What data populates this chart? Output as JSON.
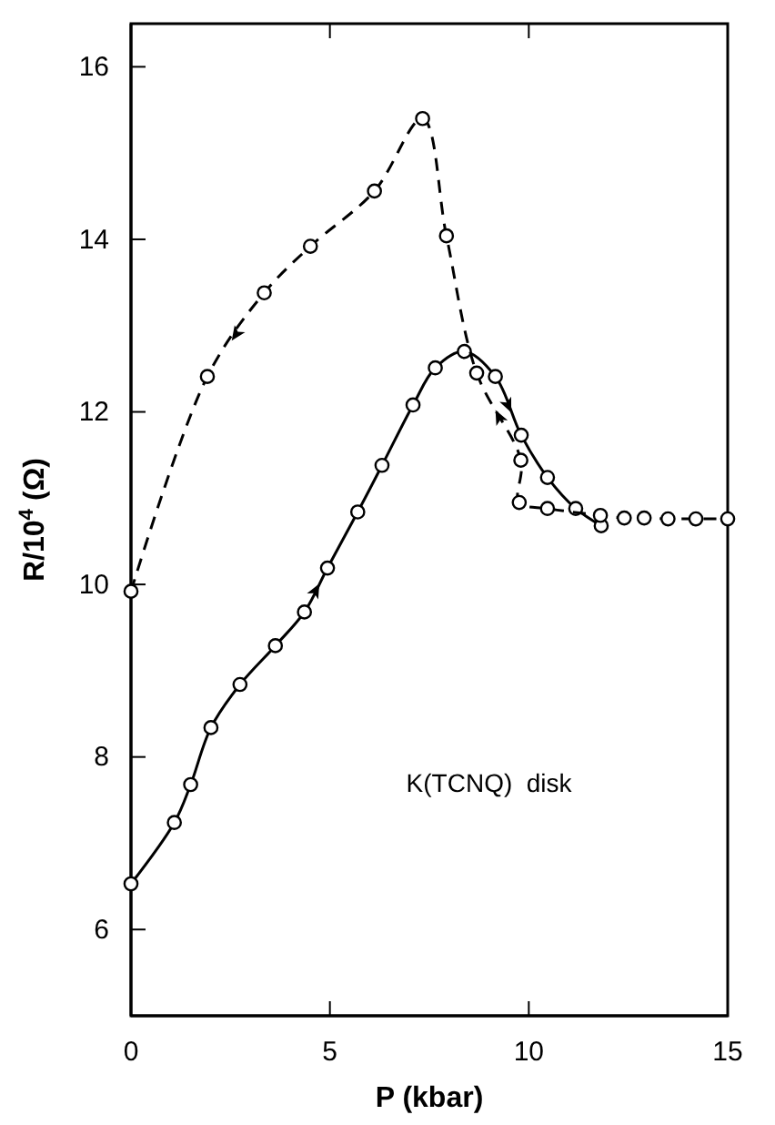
{
  "chart_data": {
    "type": "line",
    "xlabel": "P (kbar)",
    "ylabel": "R/10$^{4}$ (Ω)",
    "xlim": [
      0,
      15
    ],
    "ylim": [
      5,
      16.5
    ],
    "xticks": [
      0,
      5,
      10,
      15
    ],
    "yticks": [
      6,
      8,
      10,
      12,
      14,
      16
    ],
    "marker": "circle",
    "annotations": [
      "K(TCNQ)  disk"
    ],
    "series": [
      {
        "color": "#000000",
        "line_style": "solid",
        "x": [
          0,
          1.09,
          1.5,
          2.01,
          2.74,
          3.63,
          4.36,
          4.94,
          5.7,
          6.31,
          7.09,
          7.65,
          8.38,
          9.16,
          9.81,
          10.47,
          11.18,
          11.82
        ],
        "values": [
          6.53,
          7.24,
          7.68,
          8.34,
          8.84,
          9.29,
          9.68,
          10.19,
          10.84,
          11.38,
          12.08,
          12.51,
          12.7,
          12.41,
          11.73,
          11.24,
          10.88,
          10.68
        ]
      },
      {
        "color": "#000000",
        "line_style": "dashed",
        "x": [
          0,
          1.92,
          3.35,
          4.51,
          6.12,
          7.33,
          7.93,
          8.69,
          9.8,
          9.76,
          10.47,
          11.18,
          11.8,
          12.4,
          12.9,
          13.5,
          14.2,
          15
        ],
        "values": [
          9.92,
          12.41,
          13.38,
          13.92,
          14.56,
          15.4,
          14.04,
          12.45,
          11.44,
          10.95,
          10.88,
          null,
          10.8,
          10.77,
          10.77,
          10.76,
          10.76,
          10.76
        ]
      }
    ]
  }
}
